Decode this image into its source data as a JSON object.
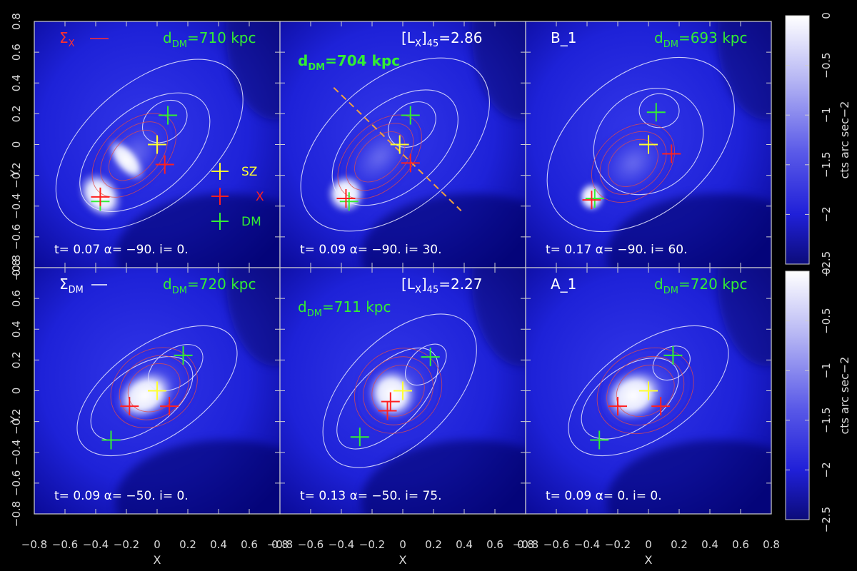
{
  "chart_data": {
    "type": "heatmap",
    "xlabel": "X",
    "ylabel": "Y",
    "xlim": [
      -0.8,
      0.8
    ],
    "ylim": [
      -0.8,
      0.8
    ],
    "x_ticks": [
      "-0.8",
      "-0.6",
      "-0.4",
      "-0.2",
      "0",
      "0.2",
      "0.4",
      "0.6",
      "0.8"
    ],
    "y_ticks": [
      "-0.8",
      "-0.6",
      "-0.4",
      "-0.2",
      "0",
      "0.2",
      "0.4",
      "0.6",
      "0.8"
    ],
    "colorbar": {
      "label": "cts arc sec−2",
      "range": [
        -2.5,
        0
      ],
      "ticks": [
        "0",
        "−0.5",
        "−1",
        "−1.5",
        "−2",
        "−2.5"
      ]
    },
    "legend": {
      "entries": [
        {
          "label": "SZ",
          "color": "#ffff33"
        },
        {
          "label": "X",
          "color": "#ff2020"
        },
        {
          "label": "DM",
          "color": "#33ee33"
        }
      ]
    },
    "colors": {
      "sz": "#ffff33",
      "x": "#ff2020",
      "dm": "#33ee33",
      "contour_white": "#e8e8ff",
      "contour_red": "#e04a4a",
      "dashed_line": "#f0a040"
    },
    "panels": [
      {
        "corner_label": "Σ",
        "corner_label_sub": "X",
        "corner_label_color": "#ff3030",
        "corner_line": true,
        "ddm_label": "d",
        "ddm_sub": "DM",
        "ddm_value": "=710 kpc",
        "ddm_pos": "top-right",
        "lx_label": "",
        "lx_value": "",
        "t": "0.07",
        "alpha": "−90.",
        "i": "0.",
        "peaks": {
          "sz": [
            [
              0.0,
              0.0
            ]
          ],
          "x": [
            [
              -0.37,
              -0.34
            ],
            [
              0.05,
              -0.13
            ]
          ],
          "dm": [
            [
              -0.37,
              -0.37
            ],
            [
              0.07,
              0.19
            ]
          ]
        },
        "dashed_line": null
      },
      {
        "corner_label": "[L",
        "corner_label_sub": "X",
        "corner_label_color": "#ffffff",
        "corner_line": false,
        "ddm_label": "d",
        "ddm_sub": "DM",
        "ddm_value": "=704 kpc",
        "ddm_pos": "upper-left",
        "lx_label": "]",
        "lx_sub": "45",
        "lx_value": "=2.86",
        "t": "0.09",
        "alpha": "−90.",
        "i": "30.",
        "peaks": {
          "sz": [
            [
              -0.02,
              0.0
            ]
          ],
          "x": [
            [
              -0.37,
              -0.35
            ],
            [
              0.05,
              -0.12
            ]
          ],
          "dm": [
            [
              -0.35,
              -0.37
            ],
            [
              0.05,
              0.19
            ]
          ]
        },
        "dashed_line": [
          [
            -0.45,
            0.37
          ],
          [
            0.38,
            -0.43
          ]
        ]
      },
      {
        "corner_label": "B_1",
        "corner_label_sub": "",
        "corner_label_color": "#ffffff",
        "corner_line": false,
        "ddm_label": "d",
        "ddm_sub": "DM",
        "ddm_value": "=693 kpc",
        "ddm_pos": "top-right",
        "lx_label": "",
        "lx_value": "",
        "t": "0.17",
        "alpha": "−90.",
        "i": "60.",
        "peaks": {
          "sz": [
            [
              0.0,
              0.0
            ]
          ],
          "x": [
            [
              -0.37,
              -0.36
            ],
            [
              0.15,
              -0.06
            ]
          ],
          "dm": [
            [
              -0.35,
              -0.35
            ],
            [
              0.05,
              0.21
            ]
          ]
        },
        "dashed_line": null
      },
      {
        "corner_label": "Σ",
        "corner_label_sub": "DM",
        "corner_label_color": "#ffffff",
        "corner_line": true,
        "ddm_label": "d",
        "ddm_sub": "DM",
        "ddm_value": "=720 kpc",
        "ddm_pos": "top-right",
        "lx_label": "",
        "lx_value": "",
        "t": "0.09",
        "alpha": "−50.",
        "i": "0.",
        "peaks": {
          "sz": [
            [
              0.0,
              0.0
            ]
          ],
          "x": [
            [
              -0.18,
              -0.1
            ],
            [
              0.08,
              -0.1
            ]
          ],
          "dm": [
            [
              -0.3,
              -0.32
            ],
            [
              0.17,
              0.23
            ]
          ]
        },
        "dashed_line": null
      },
      {
        "corner_label": "[L",
        "corner_label_sub": "X",
        "corner_label_color": "#ffffff",
        "corner_line": false,
        "ddm_label": "d",
        "ddm_sub": "DM",
        "ddm_value": "=711 kpc",
        "ddm_pos": "upper-left",
        "lx_label": "]",
        "lx_sub": "45",
        "lx_value": "=2.27",
        "t": "0.13",
        "alpha": "−50.",
        "i": "75.",
        "peaks": {
          "sz": [
            [
              0.0,
              0.0
            ]
          ],
          "x": [
            [
              -0.08,
              -0.07
            ],
            [
              -0.1,
              -0.13
            ]
          ],
          "dm": [
            [
              -0.28,
              -0.3
            ],
            [
              0.18,
              0.22
            ]
          ]
        },
        "dashed_line": null
      },
      {
        "corner_label": "A_1",
        "corner_label_sub": "",
        "corner_label_color": "#ffffff",
        "corner_line": false,
        "ddm_label": "d",
        "ddm_sub": "DM",
        "ddm_value": "=720 kpc",
        "ddm_pos": "top-right",
        "lx_label": "",
        "lx_value": "",
        "t": "0.09",
        "alpha": "0.",
        "i": "0.",
        "peaks": {
          "sz": [
            [
              0.0,
              0.0
            ]
          ],
          "x": [
            [
              -0.2,
              -0.1
            ],
            [
              0.08,
              -0.1
            ]
          ],
          "dm": [
            [
              -0.32,
              -0.32
            ],
            [
              0.16,
              0.23
            ]
          ]
        },
        "dashed_line": null
      }
    ]
  }
}
